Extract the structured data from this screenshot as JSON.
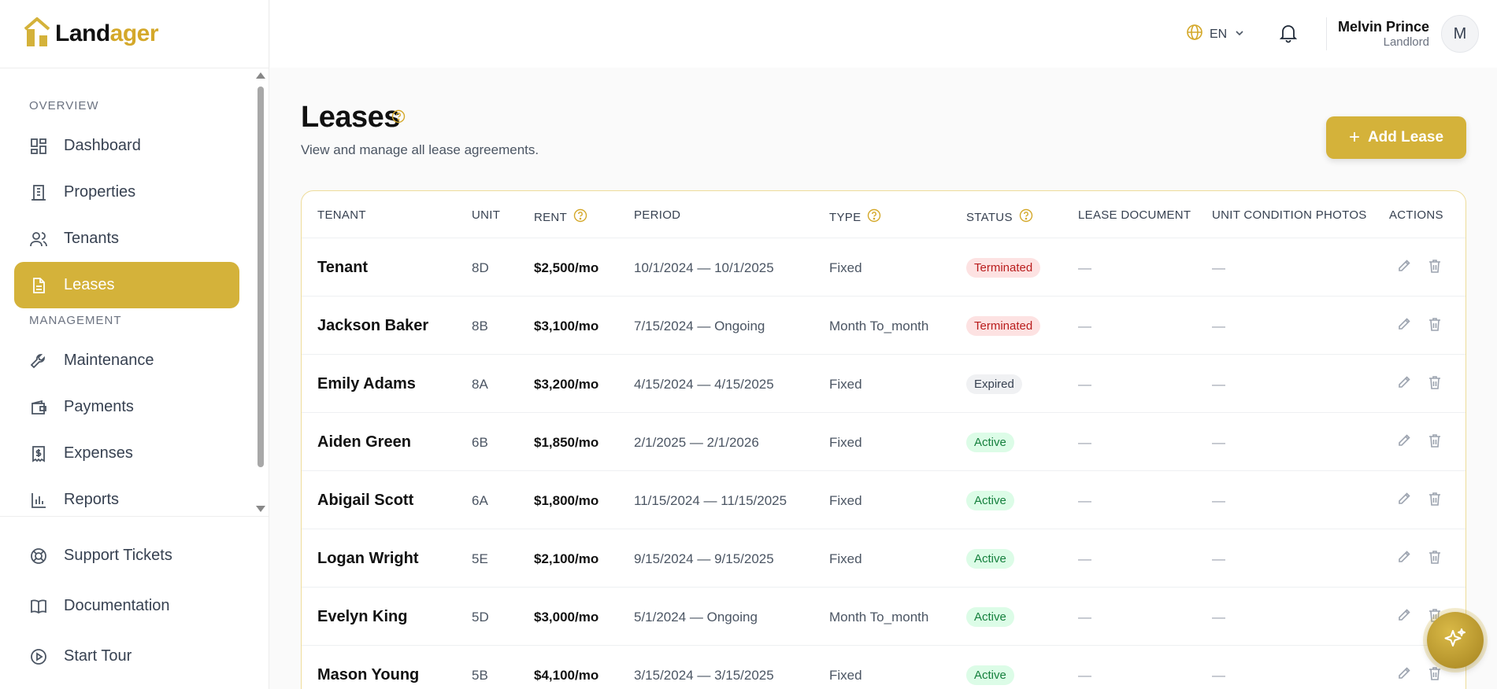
{
  "brand": {
    "name_part1": "Land",
    "name_part2": "ager",
    "accent": "#d4b23a"
  },
  "sidebar": {
    "overview_label": "OVERVIEW",
    "management_label": "MANAGEMENT",
    "items": [
      {
        "label": "Dashboard",
        "icon": "grid-icon"
      },
      {
        "label": "Properties",
        "icon": "building-icon"
      },
      {
        "label": "Tenants",
        "icon": "users-icon"
      },
      {
        "label": "Leases",
        "icon": "document-icon",
        "active": true
      },
      {
        "label": "Maintenance",
        "icon": "wrench-icon"
      },
      {
        "label": "Payments",
        "icon": "wallet-icon"
      },
      {
        "label": "Expenses",
        "icon": "receipt-icon"
      },
      {
        "label": "Reports",
        "icon": "bar-chart-icon"
      }
    ],
    "bottom_items": [
      {
        "label": "Support Tickets",
        "icon": "lifebuoy-icon"
      },
      {
        "label": "Documentation",
        "icon": "book-icon"
      },
      {
        "label": "Start Tour",
        "icon": "play-circle-icon"
      }
    ]
  },
  "header": {
    "language": "EN",
    "user_name": "Melvin Prince",
    "user_role": "Landlord",
    "avatar_initial": "M"
  },
  "page": {
    "title": "Leases",
    "subtitle": "View and manage all lease agreements.",
    "add_button": "Add Lease"
  },
  "table": {
    "columns": {
      "tenant": "TENANT",
      "unit": "UNIT",
      "rent": "RENT",
      "period": "PERIOD",
      "type": "TYPE",
      "status": "STATUS",
      "lease_document": "LEASE DOCUMENT",
      "unit_condition_photos": "UNIT CONDITION PHOTOS",
      "actions": "ACTIONS"
    },
    "empty_value": "—",
    "rows": [
      {
        "tenant": "Tenant",
        "unit": "8D",
        "rent": "$2,500/mo",
        "period": "10/1/2024 — 10/1/2025",
        "type": "Fixed",
        "status": "Terminated",
        "status_kind": "terminated"
      },
      {
        "tenant": "Jackson Baker",
        "unit": "8B",
        "rent": "$3,100/mo",
        "period": "7/15/2024 — Ongoing",
        "type": "Month To_month",
        "status": "Terminated",
        "status_kind": "terminated"
      },
      {
        "tenant": "Emily Adams",
        "unit": "8A",
        "rent": "$3,200/mo",
        "period": "4/15/2024 — 4/15/2025",
        "type": "Fixed",
        "status": "Expired",
        "status_kind": "expired"
      },
      {
        "tenant": "Aiden Green",
        "unit": "6B",
        "rent": "$1,850/mo",
        "period": "2/1/2025 — 2/1/2026",
        "type": "Fixed",
        "status": "Active",
        "status_kind": "active"
      },
      {
        "tenant": "Abigail Scott",
        "unit": "6A",
        "rent": "$1,800/mo",
        "period": "11/15/2024 — 11/15/2025",
        "type": "Fixed",
        "status": "Active",
        "status_kind": "active"
      },
      {
        "tenant": "Logan Wright",
        "unit": "5E",
        "rent": "$2,100/mo",
        "period": "9/15/2024 — 9/15/2025",
        "type": "Fixed",
        "status": "Active",
        "status_kind": "active"
      },
      {
        "tenant": "Evelyn King",
        "unit": "5D",
        "rent": "$3,000/mo",
        "period": "5/1/2024 — Ongoing",
        "type": "Month To_month",
        "status": "Active",
        "status_kind": "active"
      },
      {
        "tenant": "Mason Young",
        "unit": "5B",
        "rent": "$4,100/mo",
        "period": "3/15/2024 — 3/15/2025",
        "type": "Fixed",
        "status": "Active",
        "status_kind": "active"
      }
    ]
  }
}
